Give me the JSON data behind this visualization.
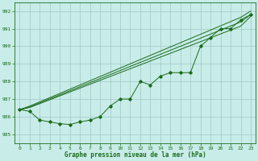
{
  "x": [
    0,
    1,
    2,
    3,
    4,
    5,
    6,
    7,
    8,
    9,
    10,
    11,
    12,
    13,
    14,
    15,
    16,
    17,
    18,
    19,
    20,
    21,
    22,
    23
  ],
  "y_main": [
    986.4,
    986.3,
    985.8,
    985.7,
    985.6,
    985.55,
    985.7,
    985.8,
    986.0,
    986.6,
    987.0,
    987.0,
    988.0,
    987.8,
    988.3,
    988.5,
    988.5,
    988.5,
    990.0,
    990.5,
    991.0,
    991.0,
    991.5,
    991.8
  ],
  "y_trend1": [
    986.4,
    986.52,
    986.74,
    986.96,
    987.18,
    987.4,
    987.62,
    987.84,
    988.06,
    988.28,
    988.5,
    988.72,
    988.94,
    989.16,
    989.38,
    989.6,
    989.82,
    990.04,
    990.26,
    990.48,
    990.7,
    990.92,
    991.14,
    991.7
  ],
  "y_trend2": [
    986.4,
    986.55,
    986.78,
    987.01,
    987.24,
    987.47,
    987.7,
    987.93,
    988.16,
    988.39,
    988.62,
    988.85,
    989.08,
    989.31,
    989.54,
    989.77,
    990.0,
    990.23,
    990.46,
    990.69,
    990.92,
    991.15,
    991.38,
    991.8
  ],
  "y_trend3": [
    986.4,
    986.6,
    986.84,
    987.08,
    987.32,
    987.56,
    987.8,
    988.04,
    988.28,
    988.52,
    988.76,
    989.0,
    989.24,
    989.48,
    989.72,
    989.96,
    990.2,
    990.44,
    990.68,
    990.92,
    991.16,
    991.4,
    991.64,
    992.0
  ],
  "bg_color": "#c8ece8",
  "grid_color": "#a0c8c8",
  "line_color": "#1a6b1a",
  "xlabel": "Graphe pression niveau de la mer (hPa)",
  "ylim": [
    984.5,
    992.5
  ],
  "xlim": [
    -0.5,
    23.5
  ],
  "yticks": [
    985,
    986,
    987,
    988,
    989,
    990,
    991,
    992
  ]
}
